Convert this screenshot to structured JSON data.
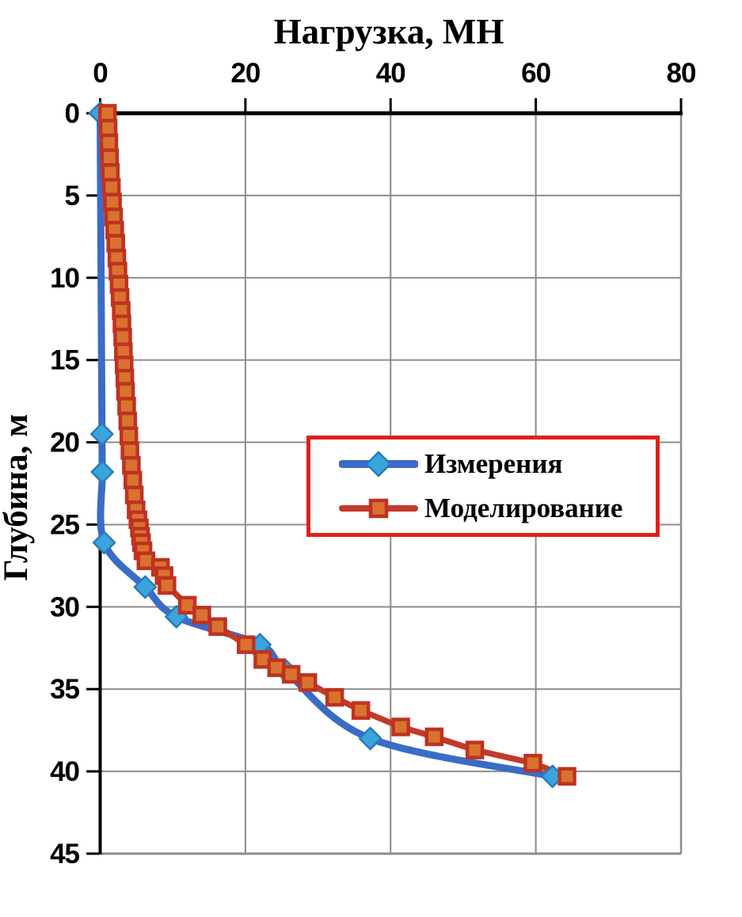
{
  "chart_data": {
    "type": "line",
    "title": "Нагрузка, МН",
    "xlabel": "Нагрузка, МН",
    "ylabel": "Глубина, м",
    "x_axis_position": "top",
    "y_axis_inverted": true,
    "xlim": [
      0,
      80
    ],
    "ylim": [
      0,
      45
    ],
    "x_ticks": [
      0,
      20,
      40,
      60,
      80
    ],
    "y_ticks": [
      0,
      5,
      10,
      15,
      20,
      25,
      30,
      35,
      40,
      45
    ],
    "grid": true,
    "legend_position": "center-right red-bordered box",
    "colors": {
      "grid": "#8C8C8C",
      "axis": "#000000",
      "legend_border": "#E0201C",
      "background": "#FFFFFF"
    },
    "series": [
      {
        "name": "Измерения",
        "marker": "diamond",
        "smooth": true,
        "line_color": "#3A6CC6",
        "marker_fill": "#3AA4DC",
        "marker_stroke": "#2C7BB8",
        "points_load_MN_depth_m": [
          [
            0,
            0
          ],
          [
            0.25,
            19.5
          ],
          [
            0.3,
            21.8
          ],
          [
            0.55,
            26.1
          ],
          [
            6.2,
            28.8
          ],
          [
            10.5,
            30.6
          ],
          [
            22.0,
            32.3
          ],
          [
            25.6,
            33.9
          ],
          [
            37.2,
            38.0
          ],
          [
            62.3,
            40.3
          ]
        ]
      },
      {
        "name": "Моделирование",
        "marker": "square",
        "smooth": false,
        "line_color": "#C23A2B",
        "marker_fill": "#D9722E",
        "marker_stroke": "#BF3222",
        "points_load_MN_depth_m": [
          [
            1.0,
            0
          ],
          [
            1.1,
            0.9
          ],
          [
            1.2,
            1.8
          ],
          [
            1.3,
            2.7
          ],
          [
            1.4,
            3.6
          ],
          [
            1.55,
            4.5
          ],
          [
            1.7,
            5.4
          ],
          [
            1.85,
            6.3
          ],
          [
            2.0,
            7.1
          ],
          [
            2.15,
            7.9
          ],
          [
            2.3,
            8.8
          ],
          [
            2.45,
            9.6
          ],
          [
            2.6,
            10.4
          ],
          [
            2.75,
            11.2
          ],
          [
            2.9,
            12.0
          ],
          [
            3.0,
            12.8
          ],
          [
            3.1,
            13.6
          ],
          [
            3.2,
            14.5
          ],
          [
            3.3,
            15.3
          ],
          [
            3.4,
            16.1
          ],
          [
            3.5,
            16.9
          ],
          [
            3.65,
            17.8
          ],
          [
            3.8,
            18.7
          ],
          [
            3.95,
            19.6
          ],
          [
            4.1,
            20.5
          ],
          [
            4.3,
            21.4
          ],
          [
            4.5,
            22.3
          ],
          [
            4.7,
            23.2
          ],
          [
            4.95,
            24.1
          ],
          [
            5.2,
            24.7
          ],
          [
            5.4,
            25.2
          ],
          [
            5.55,
            25.7
          ],
          [
            5.7,
            26.1
          ],
          [
            5.9,
            26.6
          ],
          [
            6.3,
            27.2
          ],
          [
            8.3,
            27.6
          ],
          [
            8.8,
            28.1
          ],
          [
            9.2,
            28.7
          ],
          [
            12.0,
            29.9
          ],
          [
            14.0,
            30.5
          ],
          [
            16.2,
            31.2
          ],
          [
            20.1,
            32.3
          ],
          [
            22.4,
            33.2
          ],
          [
            24.3,
            33.7
          ],
          [
            26.3,
            34.1
          ],
          [
            28.6,
            34.6
          ],
          [
            32.3,
            35.5
          ],
          [
            35.9,
            36.3
          ],
          [
            41.4,
            37.3
          ],
          [
            46.0,
            37.9
          ],
          [
            51.6,
            38.7
          ],
          [
            59.6,
            39.5
          ],
          [
            64.3,
            40.3
          ]
        ]
      }
    ]
  }
}
